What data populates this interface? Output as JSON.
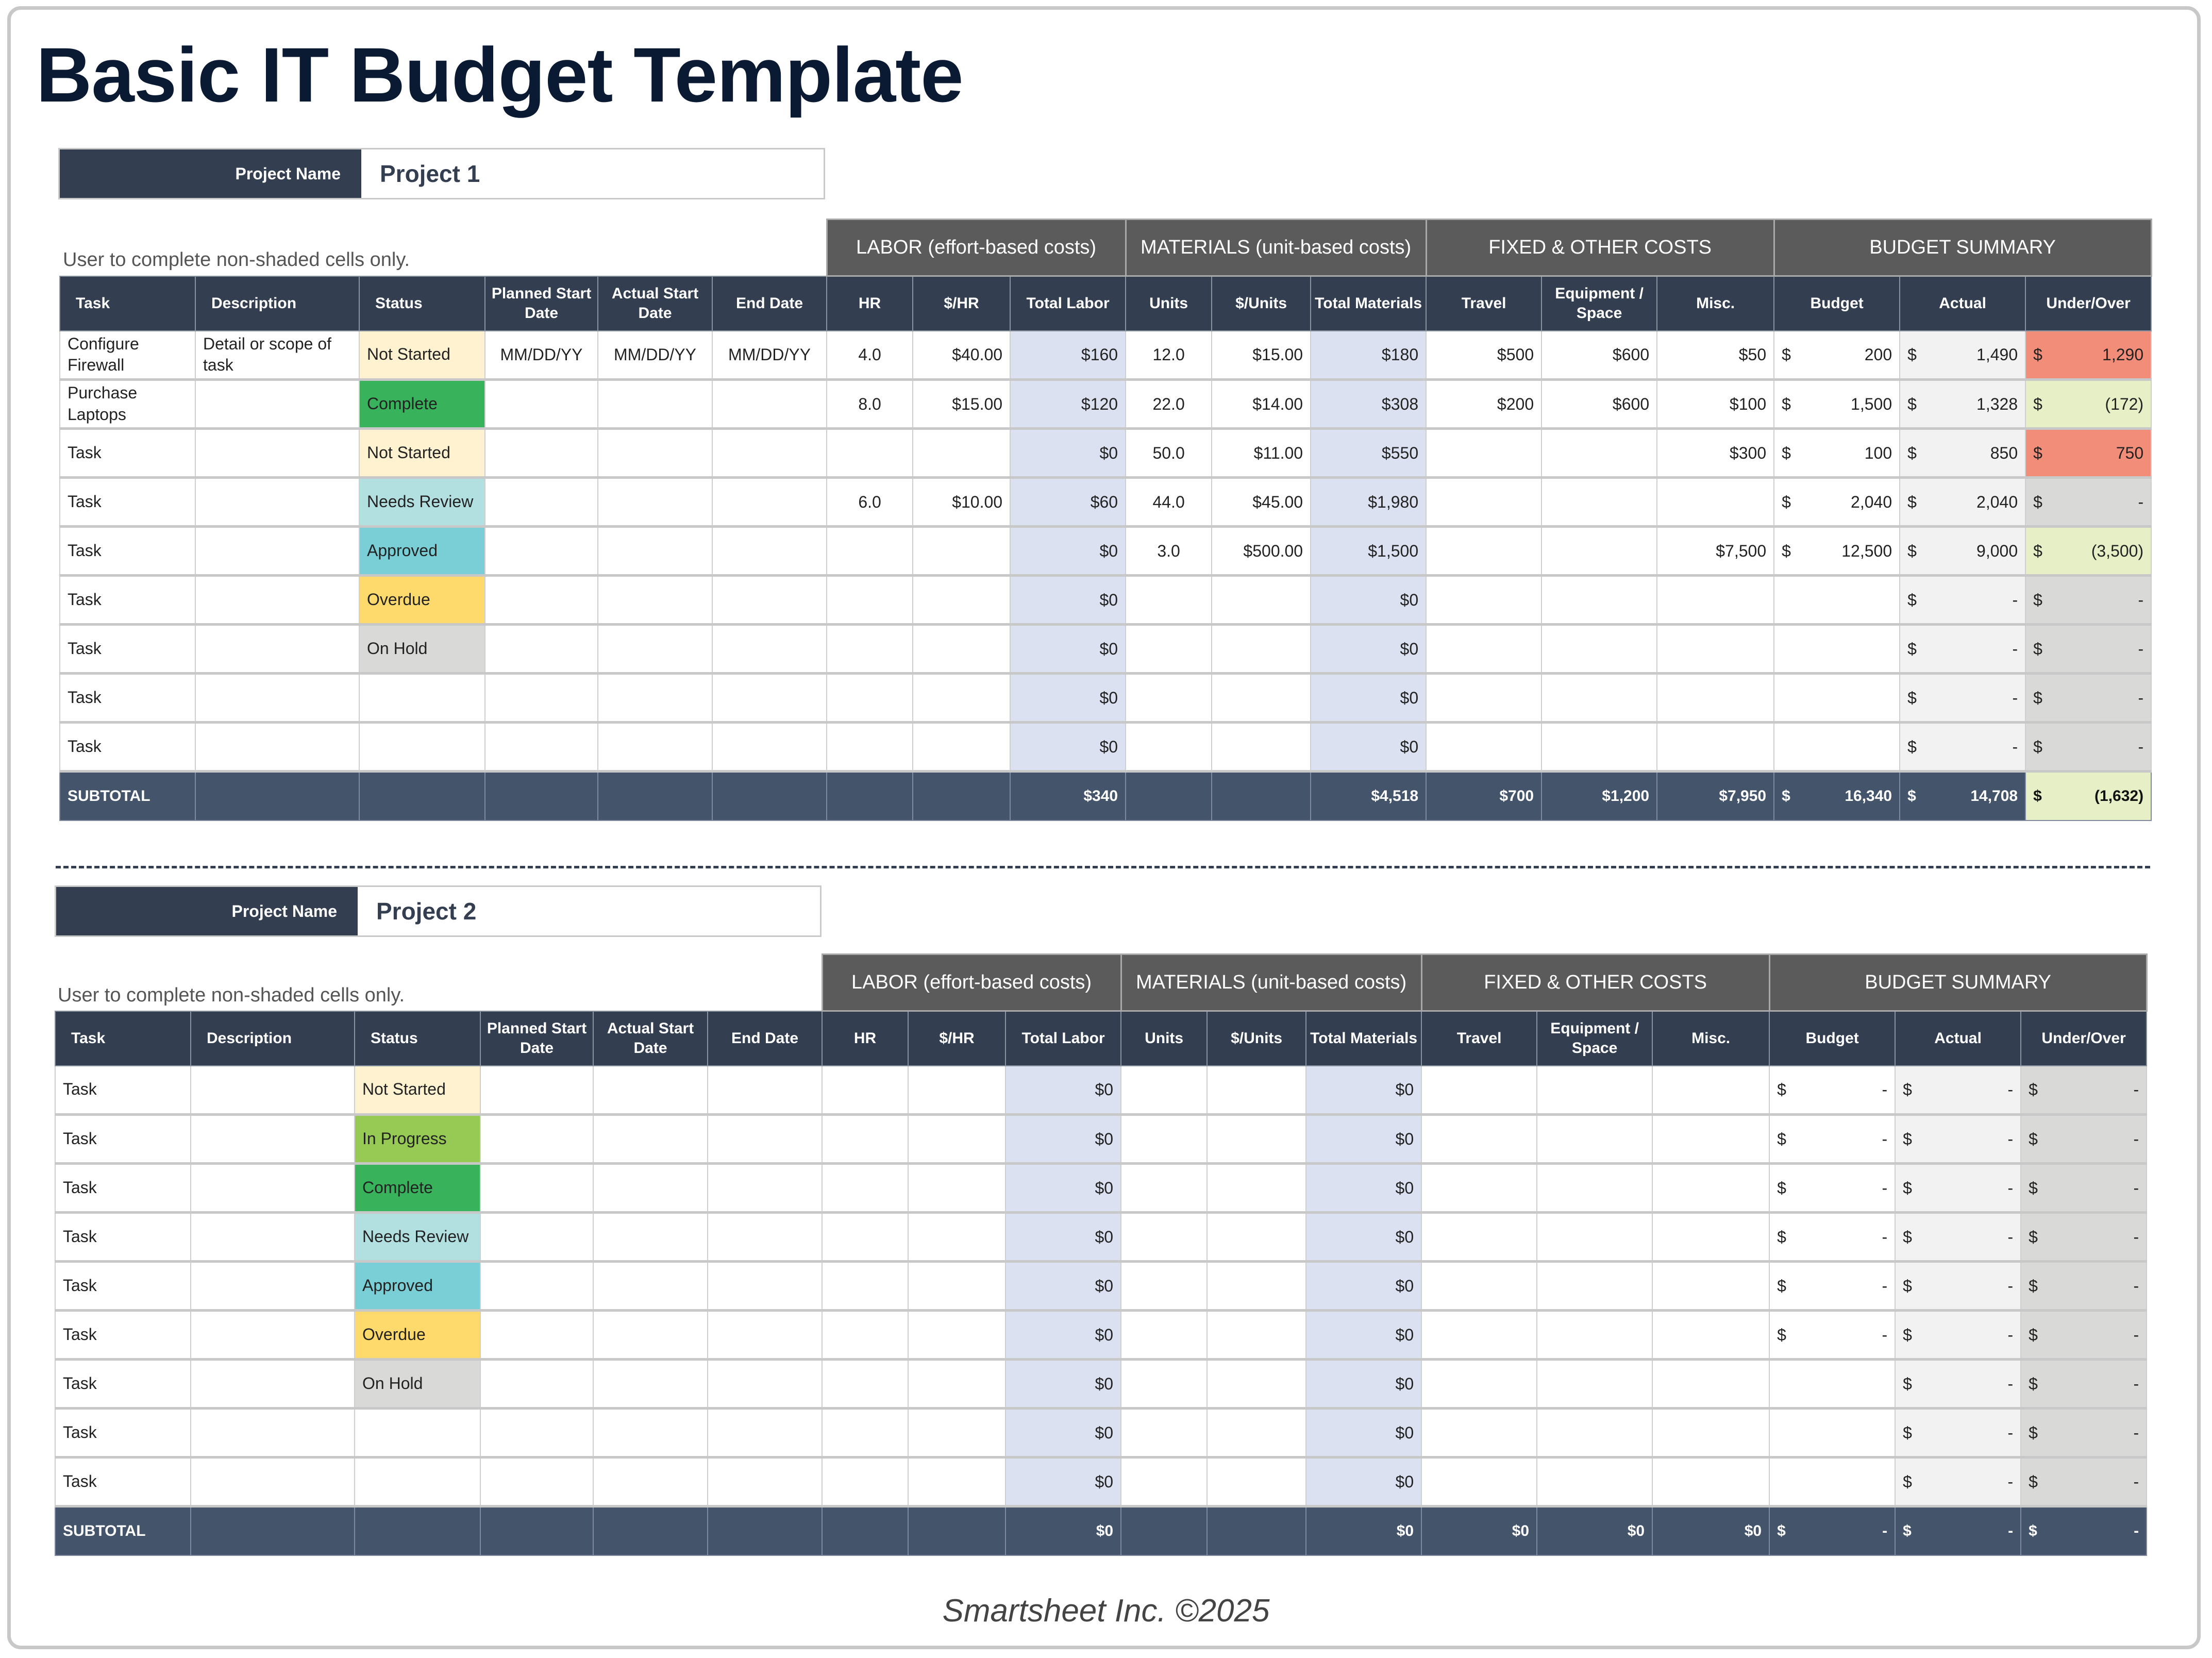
{
  "title": "Basic IT Budget Template",
  "footer": "Smartsheet Inc. ©2025",
  "colors": {
    "header_dark": "#333f50",
    "group_header": "#5a5b5a",
    "subtotal": "#44546a",
    "calc_fill": "#dbe1f1",
    "over_budget": "#f28d7a",
    "under_budget": "#e7efc6",
    "status": {
      "Not Started": "#fff2d1",
      "In Progress": "#97c955",
      "Complete": "#38b25b",
      "Needs Review": "#b2e0e0",
      "Approved": "#79cfd5",
      "Overdue": "#fed96b",
      "On Hold": "#d9d9d8"
    }
  },
  "project_name_label": "Project Name",
  "note": "User to complete non-shaded cells only.",
  "group_headers": [
    "LABOR (effort-based costs)",
    "MATERIALS (unit-based costs)",
    "FIXED & OTHER COSTS",
    "BUDGET SUMMARY"
  ],
  "columns": [
    "Task",
    "Description",
    "Status",
    "Planned Start Date",
    "Actual Start Date",
    "End Date",
    "HR",
    "$/HR",
    "Total Labor",
    "Units",
    "$/Units",
    "Total Materials",
    "Travel",
    "Equipment / Space",
    "Misc.",
    "Budget",
    "Actual",
    "Under/Over"
  ],
  "projects": [
    {
      "name": "Project 1",
      "rows": [
        {
          "task": "Configure Firewall",
          "description": "Detail or scope of task",
          "status": "Not Started",
          "planned_start": "MM/DD/YY",
          "actual_start": "MM/DD/YY",
          "end_date": "MM/DD/YY",
          "hr": "4.0",
          "rate": "$40.00",
          "total_labor": "$160",
          "units": "12.0",
          "unit_cost": "$15.00",
          "total_materials": "$180",
          "travel": "$500",
          "equipment": "$600",
          "misc": "$50",
          "budget": "200",
          "actual": "1,490",
          "under_over": "1,290",
          "uo_state": "red",
          "budget_sym": "$"
        },
        {
          "task": "Purchase Laptops",
          "description": "",
          "status": "Complete",
          "planned_start": "",
          "actual_start": "",
          "end_date": "",
          "hr": "8.0",
          "rate": "$15.00",
          "total_labor": "$120",
          "units": "22.0",
          "unit_cost": "$14.00",
          "total_materials": "$308",
          "travel": "$200",
          "equipment": "$600",
          "misc": "$100",
          "budget": "1,500",
          "actual": "1,328",
          "under_over": "(172)",
          "uo_state": "grn",
          "budget_sym": "$"
        },
        {
          "task": "Task",
          "description": "",
          "status": "Not Started",
          "planned_start": "",
          "actual_start": "",
          "end_date": "",
          "hr": "",
          "rate": "",
          "total_labor": "$0",
          "units": "50.0",
          "unit_cost": "$11.00",
          "total_materials": "$550",
          "travel": "",
          "equipment": "",
          "misc": "$300",
          "budget": "100",
          "actual": "850",
          "under_over": "750",
          "uo_state": "red",
          "budget_sym": "$"
        },
        {
          "task": "Task",
          "description": "",
          "status": "Needs Review",
          "planned_start": "",
          "actual_start": "",
          "end_date": "",
          "hr": "6.0",
          "rate": "$10.00",
          "total_labor": "$60",
          "units": "44.0",
          "unit_cost": "$45.00",
          "total_materials": "$1,980",
          "travel": "",
          "equipment": "",
          "misc": "",
          "budget": "2,040",
          "actual": "2,040",
          "under_over": "-",
          "uo_state": "",
          "budget_sym": "$"
        },
        {
          "task": "Task",
          "description": "",
          "status": "Approved",
          "planned_start": "",
          "actual_start": "",
          "end_date": "",
          "hr": "",
          "rate": "",
          "total_labor": "$0",
          "units": "3.0",
          "unit_cost": "$500.00",
          "total_materials": "$1,500",
          "travel": "",
          "equipment": "",
          "misc": "$7,500",
          "budget": "12,500",
          "actual": "9,000",
          "under_over": "(3,500)",
          "uo_state": "grn",
          "budget_sym": "$"
        },
        {
          "task": "Task",
          "description": "",
          "status": "Overdue",
          "planned_start": "",
          "actual_start": "",
          "end_date": "",
          "hr": "",
          "rate": "",
          "total_labor": "$0",
          "units": "",
          "unit_cost": "",
          "total_materials": "$0",
          "travel": "",
          "equipment": "",
          "misc": "",
          "budget": "",
          "actual": "-",
          "under_over": "-",
          "uo_state": "",
          "budget_sym": ""
        },
        {
          "task": "Task",
          "description": "",
          "status": "On Hold",
          "planned_start": "",
          "actual_start": "",
          "end_date": "",
          "hr": "",
          "rate": "",
          "total_labor": "$0",
          "units": "",
          "unit_cost": "",
          "total_materials": "$0",
          "travel": "",
          "equipment": "",
          "misc": "",
          "budget": "",
          "actual": "-",
          "under_over": "-",
          "uo_state": "",
          "budget_sym": ""
        },
        {
          "task": "Task",
          "description": "",
          "status": "",
          "planned_start": "",
          "actual_start": "",
          "end_date": "",
          "hr": "",
          "rate": "",
          "total_labor": "$0",
          "units": "",
          "unit_cost": "",
          "total_materials": "$0",
          "travel": "",
          "equipment": "",
          "misc": "",
          "budget": "",
          "actual": "-",
          "under_over": "-",
          "uo_state": "",
          "budget_sym": ""
        },
        {
          "task": "Task",
          "description": "",
          "status": "",
          "planned_start": "",
          "actual_start": "",
          "end_date": "",
          "hr": "",
          "rate": "",
          "total_labor": "$0",
          "units": "",
          "unit_cost": "",
          "total_materials": "$0",
          "travel": "",
          "equipment": "",
          "misc": "",
          "budget": "",
          "actual": "-",
          "under_over": "-",
          "uo_state": "",
          "budget_sym": ""
        }
      ],
      "subtotal": {
        "label": "SUBTOTAL",
        "total_labor": "$340",
        "total_materials": "$4,518",
        "travel": "$700",
        "equipment": "$1,200",
        "misc": "$7,950",
        "budget": "16,340",
        "actual": "14,708",
        "under_over": "(1,632)",
        "uo_state": "grn"
      }
    },
    {
      "name": "Project 2",
      "rows": [
        {
          "task": "Task",
          "description": "",
          "status": "Not Started",
          "planned_start": "",
          "actual_start": "",
          "end_date": "",
          "hr": "",
          "rate": "",
          "total_labor": "$0",
          "units": "",
          "unit_cost": "",
          "total_materials": "$0",
          "travel": "",
          "equipment": "",
          "misc": "",
          "budget": "-",
          "actual": "-",
          "under_over": "-",
          "uo_state": "",
          "budget_sym": "$"
        },
        {
          "task": "Task",
          "description": "",
          "status": "In Progress",
          "planned_start": "",
          "actual_start": "",
          "end_date": "",
          "hr": "",
          "rate": "",
          "total_labor": "$0",
          "units": "",
          "unit_cost": "",
          "total_materials": "$0",
          "travel": "",
          "equipment": "",
          "misc": "",
          "budget": "-",
          "actual": "-",
          "under_over": "-",
          "uo_state": "",
          "budget_sym": "$"
        },
        {
          "task": "Task",
          "description": "",
          "status": "Complete",
          "planned_start": "",
          "actual_start": "",
          "end_date": "",
          "hr": "",
          "rate": "",
          "total_labor": "$0",
          "units": "",
          "unit_cost": "",
          "total_materials": "$0",
          "travel": "",
          "equipment": "",
          "misc": "",
          "budget": "-",
          "actual": "-",
          "under_over": "-",
          "uo_state": "",
          "budget_sym": "$"
        },
        {
          "task": "Task",
          "description": "",
          "status": "Needs Review",
          "planned_start": "",
          "actual_start": "",
          "end_date": "",
          "hr": "",
          "rate": "",
          "total_labor": "$0",
          "units": "",
          "unit_cost": "",
          "total_materials": "$0",
          "travel": "",
          "equipment": "",
          "misc": "",
          "budget": "-",
          "actual": "-",
          "under_over": "-",
          "uo_state": "",
          "budget_sym": "$"
        },
        {
          "task": "Task",
          "description": "",
          "status": "Approved",
          "planned_start": "",
          "actual_start": "",
          "end_date": "",
          "hr": "",
          "rate": "",
          "total_labor": "$0",
          "units": "",
          "unit_cost": "",
          "total_materials": "$0",
          "travel": "",
          "equipment": "",
          "misc": "",
          "budget": "-",
          "actual": "-",
          "under_over": "-",
          "uo_state": "",
          "budget_sym": "$"
        },
        {
          "task": "Task",
          "description": "",
          "status": "Overdue",
          "planned_start": "",
          "actual_start": "",
          "end_date": "",
          "hr": "",
          "rate": "",
          "total_labor": "$0",
          "units": "",
          "unit_cost": "",
          "total_materials": "$0",
          "travel": "",
          "equipment": "",
          "misc": "",
          "budget": "-",
          "actual": "-",
          "under_over": "-",
          "uo_state": "",
          "budget_sym": "$"
        },
        {
          "task": "Task",
          "description": "",
          "status": "On Hold",
          "planned_start": "",
          "actual_start": "",
          "end_date": "",
          "hr": "",
          "rate": "",
          "total_labor": "$0",
          "units": "",
          "unit_cost": "",
          "total_materials": "$0",
          "travel": "",
          "equipment": "",
          "misc": "",
          "budget": "",
          "actual": "-",
          "under_over": "-",
          "uo_state": "",
          "budget_sym": ""
        },
        {
          "task": "Task",
          "description": "",
          "status": "",
          "planned_start": "",
          "actual_start": "",
          "end_date": "",
          "hr": "",
          "rate": "",
          "total_labor": "$0",
          "units": "",
          "unit_cost": "",
          "total_materials": "$0",
          "travel": "",
          "equipment": "",
          "misc": "",
          "budget": "",
          "actual": "-",
          "under_over": "-",
          "uo_state": "",
          "budget_sym": ""
        },
        {
          "task": "Task",
          "description": "",
          "status": "",
          "planned_start": "",
          "actual_start": "",
          "end_date": "",
          "hr": "",
          "rate": "",
          "total_labor": "$0",
          "units": "",
          "unit_cost": "",
          "total_materials": "$0",
          "travel": "",
          "equipment": "",
          "misc": "",
          "budget": "",
          "actual": "-",
          "under_over": "-",
          "uo_state": "",
          "budget_sym": ""
        }
      ],
      "subtotal": {
        "label": "SUBTOTAL",
        "total_labor": "$0",
        "total_materials": "$0",
        "travel": "$0",
        "equipment": "$0",
        "misc": "$0",
        "budget": "-",
        "actual": "-",
        "under_over": "-",
        "uo_state": ""
      }
    }
  ]
}
